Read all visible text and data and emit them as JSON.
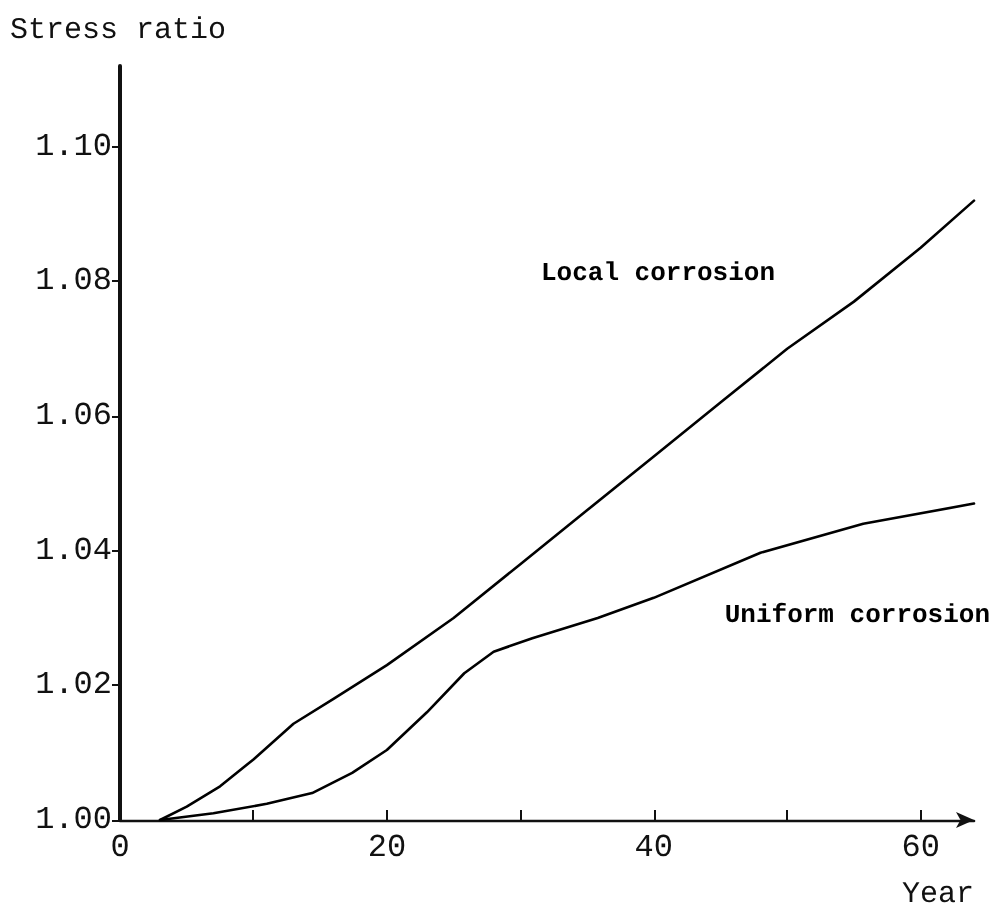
{
  "chart_data": {
    "type": "line",
    "xlabel": "Year",
    "ylabel": "Stress ratio",
    "xlim": [
      0,
      64
    ],
    "xticks": [
      0,
      {
        "value": 10,
        "label": null
      },
      20,
      {
        "value": 30,
        "label": null
      },
      40,
      {
        "value": 50,
        "label": null
      },
      60
    ],
    "ylim": [
      1.0,
      1.112
    ],
    "yticks": [
      {
        "value": 1.0,
        "label": "1.00"
      },
      {
        "value": 1.02,
        "label": "1.02"
      },
      {
        "value": 1.04,
        "label": "1.04"
      },
      {
        "value": 1.06,
        "label": "1.06"
      },
      {
        "value": 1.08,
        "label": "1.08"
      },
      {
        "value": 1.1,
        "label": "1.10"
      }
    ],
    "grid": false,
    "legend": false,
    "marker": "none",
    "line_style": "solid",
    "series": [
      {
        "name": "Local corrosion",
        "color": "#000000",
        "x": [
          3,
          5,
          7.5,
          10,
          13,
          16,
          20,
          25,
          30,
          35,
          40,
          45,
          50,
          55,
          60,
          64
        ],
        "values": [
          1.0,
          1.002,
          1.005,
          1.009,
          1.0143,
          1.018,
          1.023,
          1.03,
          1.038,
          1.046,
          1.054,
          1.062,
          1.07,
          1.077,
          1.085,
          1.092
        ]
      },
      {
        "name": "Uniform corrosion",
        "color": "#000000",
        "x": [
          3,
          7,
          11,
          14.4,
          17.4,
          20,
          23,
          25.8,
          28,
          30.9,
          35.8,
          40,
          48,
          55.7,
          64
        ],
        "values": [
          1.0,
          1.001,
          1.0024,
          1.004,
          1.007,
          1.0104,
          1.016,
          1.0218,
          1.025,
          1.027,
          1.03,
          1.033,
          1.0397,
          1.044,
          1.047
        ]
      }
    ]
  }
}
